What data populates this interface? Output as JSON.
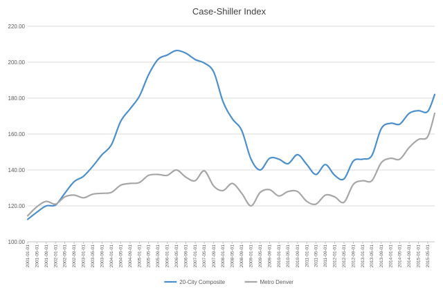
{
  "chart_data": {
    "type": "line",
    "title": "Case-Shiller Index",
    "xlabel": "",
    "ylabel": "",
    "ylim": [
      100,
      220
    ],
    "yticks": [
      "100.00",
      "120.00",
      "140.00",
      "160.00",
      "180.00",
      "200.00",
      "220.00"
    ],
    "xticks": [
      "2001-01-01",
      "2001-05-01",
      "2001-09-01",
      "2002-01-01",
      "2002-05-01",
      "2002-09-01",
      "2003-01-01",
      "2003-05-01",
      "2003-09-01",
      "2004-01-01",
      "2004-05-01",
      "2004-09-01",
      "2005-01-01",
      "2005-05-01",
      "2005-09-01",
      "2006-01-01",
      "2006-05-01",
      "2006-09-01",
      "2007-01-01",
      "2007-05-01",
      "2007-09-01",
      "2008-01-01",
      "2008-05-01",
      "2008-09-01",
      "2009-01-01",
      "2009-05-01",
      "2009-09-01",
      "2010-01-01",
      "2010-05-01",
      "2010-09-01",
      "2011-01-01",
      "2011-05-01",
      "2011-09-01",
      "2012-01-01",
      "2012-05-01",
      "2012-09-01",
      "2013-01-01",
      "2013-05-01",
      "2013-09-01",
      "2014-01-01",
      "2014-05-01",
      "2014-09-01",
      "2015-01-01",
      "2015-05-01"
    ],
    "grid": true,
    "legend_position": "bottom",
    "series": [
      {
        "name": "20-City Composite",
        "color": "#4a8fcb",
        "x": [
          "2001-01-01",
          "2001-05-01",
          "2001-09-01",
          "2002-01-01",
          "2002-05-01",
          "2002-09-01",
          "2003-01-01",
          "2003-05-01",
          "2003-09-01",
          "2004-01-01",
          "2004-05-01",
          "2004-09-01",
          "2005-01-01",
          "2005-05-01",
          "2005-09-01",
          "2006-01-01",
          "2006-05-01",
          "2006-09-01",
          "2007-01-01",
          "2007-05-01",
          "2007-09-01",
          "2008-01-01",
          "2008-05-01",
          "2008-09-01",
          "2009-01-01",
          "2009-05-01",
          "2009-09-01",
          "2010-01-01",
          "2010-05-01",
          "2010-09-01",
          "2011-01-01",
          "2011-05-01",
          "2011-09-01",
          "2012-01-01",
          "2012-05-01",
          "2012-09-01",
          "2013-01-01",
          "2013-05-01",
          "2013-09-01",
          "2014-01-01",
          "2014-05-01",
          "2014-09-01",
          "2015-01-01",
          "2015-05-01",
          "2015-08-01"
        ],
        "values": [
          112.5,
          116.5,
          120.0,
          120.5,
          127.0,
          133.5,
          136.5,
          142.0,
          148.5,
          154.0,
          167.0,
          174.0,
          181.0,
          193.0,
          201.5,
          204.0,
          206.5,
          205.0,
          201.5,
          199.5,
          194.5,
          178.0,
          168.5,
          162.0,
          146.0,
          140.0,
          146.5,
          146.0,
          143.5,
          148.5,
          143.0,
          137.5,
          143.0,
          137.0,
          135.0,
          145.0,
          146.0,
          148.0,
          163.0,
          166.0,
          165.5,
          171.5,
          173.0,
          172.5,
          182.0
        ]
      },
      {
        "name": "Metro Denver",
        "color": "#a6a6a6",
        "x": [
          "2001-01-01",
          "2001-05-01",
          "2001-09-01",
          "2002-01-01",
          "2002-05-01",
          "2002-09-01",
          "2003-01-01",
          "2003-05-01",
          "2003-09-01",
          "2004-01-01",
          "2004-05-01",
          "2004-09-01",
          "2005-01-01",
          "2005-05-01",
          "2005-09-01",
          "2006-01-01",
          "2006-05-01",
          "2006-09-01",
          "2007-01-01",
          "2007-05-01",
          "2007-09-01",
          "2008-01-01",
          "2008-05-01",
          "2008-09-01",
          "2009-01-01",
          "2009-05-01",
          "2009-09-01",
          "2010-01-01",
          "2010-05-01",
          "2010-09-01",
          "2011-01-01",
          "2011-05-01",
          "2011-09-01",
          "2012-01-01",
          "2012-05-01",
          "2012-09-01",
          "2013-01-01",
          "2013-05-01",
          "2013-09-01",
          "2014-01-01",
          "2014-05-01",
          "2014-09-01",
          "2015-01-01",
          "2015-05-01",
          "2015-08-01"
        ],
        "values": [
          114.5,
          119.5,
          122.5,
          121.0,
          125.0,
          126.0,
          124.5,
          126.5,
          127.0,
          127.5,
          131.5,
          132.5,
          133.0,
          137.0,
          137.5,
          137.0,
          140.0,
          136.0,
          134.0,
          139.5,
          131.0,
          128.5,
          132.5,
          127.0,
          120.0,
          127.5,
          129.0,
          125.5,
          128.0,
          128.0,
          122.5,
          121.0,
          126.0,
          125.0,
          122.0,
          132.0,
          134.0,
          134.0,
          144.0,
          146.5,
          146.0,
          152.5,
          157.0,
          158.5,
          171.5
        ]
      }
    ]
  }
}
